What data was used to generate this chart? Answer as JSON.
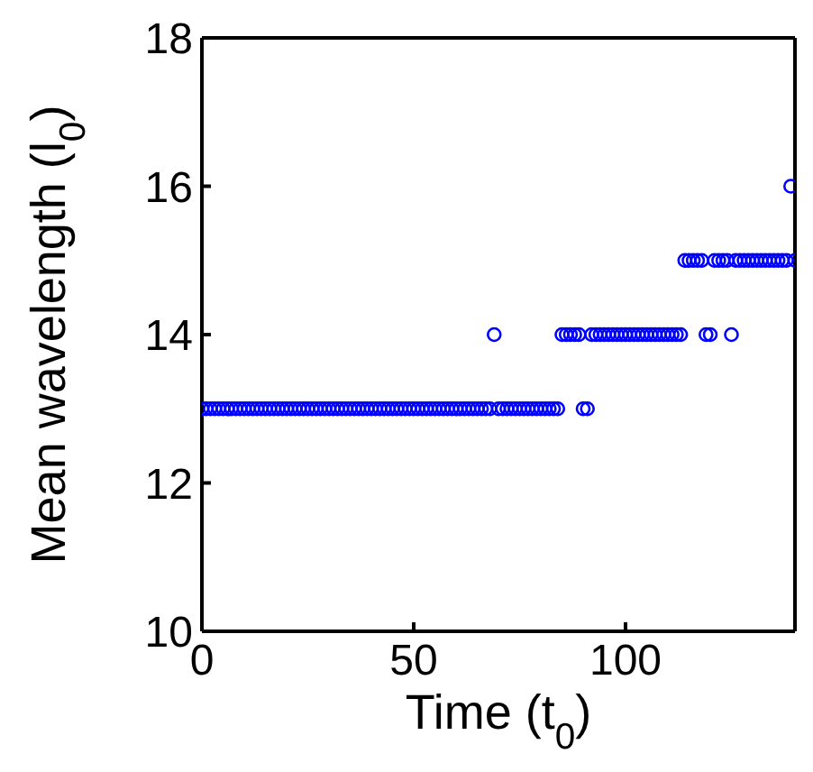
{
  "chart_data": {
    "type": "scatter",
    "xlabel": "Time (t$_{0}$)",
    "ylabel": "Mean wavelength  (l$_{0}$)",
    "xlim": [
      0,
      140
    ],
    "xticks": [
      0,
      50,
      100
    ],
    "ylim": [
      10,
      18
    ],
    "yticks": [
      10,
      12,
      14,
      16,
      18
    ],
    "marker": "circle",
    "series": [
      {
        "color": "#0000ff",
        "x": [
          0,
          1,
          2,
          3,
          4,
          5,
          6,
          7,
          8,
          9,
          10,
          11,
          12,
          13,
          14,
          15,
          16,
          17,
          18,
          19,
          20,
          21,
          22,
          23,
          24,
          25,
          26,
          27,
          28,
          29,
          30,
          31,
          32,
          33,
          34,
          35,
          36,
          37,
          38,
          39,
          40,
          41,
          42,
          43,
          44,
          45,
          46,
          47,
          48,
          49,
          50,
          51,
          52,
          53,
          54,
          55,
          56,
          57,
          58,
          59,
          60,
          61,
          62,
          63,
          64,
          65,
          66,
          67,
          68,
          69,
          70,
          71,
          72,
          73,
          74,
          75,
          76,
          77,
          78,
          79,
          80,
          81,
          82,
          83,
          84,
          85,
          86,
          87,
          88,
          89,
          90,
          91,
          92,
          93,
          94,
          95,
          96,
          97,
          98,
          99,
          100,
          101,
          102,
          103,
          104,
          105,
          106,
          107,
          108,
          109,
          110,
          111,
          112,
          113,
          114,
          115,
          116,
          117,
          118,
          119,
          120,
          121,
          122,
          123,
          124,
          125,
          126,
          127,
          128,
          129,
          130,
          131,
          132,
          133,
          134,
          135,
          136,
          137,
          138,
          139,
          140
        ],
        "values": [
          13,
          13,
          13,
          13,
          13,
          13,
          13,
          13,
          13,
          13,
          13,
          13,
          13,
          13,
          13,
          13,
          13,
          13,
          13,
          13,
          13,
          13,
          13,
          13,
          13,
          13,
          13,
          13,
          13,
          13,
          13,
          13,
          13,
          13,
          13,
          13,
          13,
          13,
          13,
          13,
          13,
          13,
          13,
          13,
          13,
          13,
          13,
          13,
          13,
          13,
          13,
          13,
          13,
          13,
          13,
          13,
          13,
          13,
          13,
          13,
          13,
          13,
          13,
          13,
          13,
          13,
          13,
          13,
          13,
          14,
          13,
          13,
          13,
          13,
          13,
          13,
          13,
          13,
          13,
          13,
          13,
          13,
          13,
          13,
          13,
          14,
          14,
          14,
          14,
          14,
          13,
          13,
          14,
          14,
          14,
          14,
          14,
          14,
          14,
          14,
          14,
          14,
          14,
          14,
          14,
          14,
          14,
          14,
          14,
          14,
          14,
          14,
          14,
          14,
          15,
          15,
          15,
          15,
          15,
          14,
          14,
          15,
          15,
          15,
          15,
          14,
          15,
          15,
          15,
          15,
          15,
          15,
          15,
          15,
          15,
          15,
          15,
          15,
          15,
          16,
          15
        ]
      }
    ]
  }
}
